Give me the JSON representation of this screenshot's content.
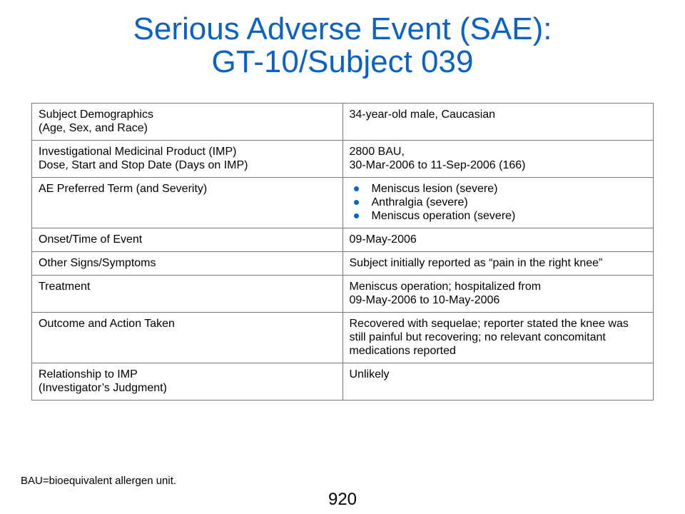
{
  "title": {
    "line1": "Serious Adverse Event (SAE):",
    "line2": "GT-10/Subject 039"
  },
  "accent_color": "#0a63c4",
  "table": {
    "rows": [
      {
        "label_lines": [
          "Subject Demographics",
          "(Age, Sex, and Race)"
        ],
        "value_lines": [
          "34-year-old male, Caucasian"
        ]
      },
      {
        "label_lines": [
          "Investigational Medicinal Product (IMP)",
          "Dose, Start and Stop Date (Days on IMP)"
        ],
        "value_lines": [
          "2800 BAU,",
          "30-Mar-2006 to 11-Sep-2006 (166)"
        ]
      },
      {
        "label_lines": [
          "AE Preferred Term (and Severity)"
        ],
        "bullets": [
          "Meniscus lesion (severe)",
          "Anthralgia (severe)",
          "Meniscus operation (severe)"
        ]
      },
      {
        "label_lines": [
          "Onset/Time of Event"
        ],
        "value_lines": [
          "09-May-2006"
        ]
      },
      {
        "label_lines": [
          "Other Signs/Symptoms"
        ],
        "value_text": "Subject initially reported as “pain in the right knee”"
      },
      {
        "label_lines": [
          "Treatment"
        ],
        "value_lines": [
          "Meniscus operation; hospitalized from",
          "09-May-2006 to 10-May-2006"
        ]
      },
      {
        "label_lines": [
          "Outcome and Action Taken"
        ],
        "value_text": "Recovered with sequelae; reporter stated the knee was still painful but recovering; no relevant concomitant medications reported"
      },
      {
        "label_lines": [
          "Relationship to IMP",
          "(Investigator’s Judgment)"
        ],
        "value_lines": [
          "Unlikely"
        ]
      }
    ]
  },
  "footnote": "BAU=bioequivalent allergen unit.",
  "page_number": "920"
}
